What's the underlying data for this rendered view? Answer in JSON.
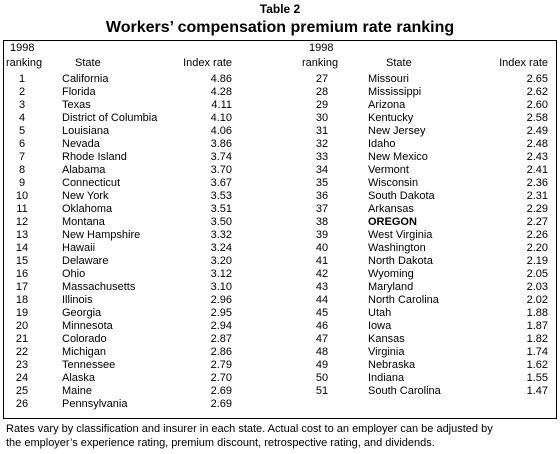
{
  "label": "Table 2",
  "title": "Workers’ compensation premium rate ranking",
  "tables": [
    {
      "header": {
        "year": "1998",
        "rank": "ranking",
        "state": "State",
        "rate": "Index rate"
      },
      "rows": [
        [
          "1",
          "California",
          "4.86"
        ],
        [
          "2",
          "Florida",
          "4.28"
        ],
        [
          "3",
          "Texas",
          "4.11"
        ],
        [
          "4",
          "District of Columbia",
          "4.10"
        ],
        [
          "5",
          "Louisiana",
          "4.06"
        ],
        [
          "6",
          "Nevada",
          "3.86"
        ],
        [
          "7",
          "Rhode Island",
          "3.74"
        ],
        [
          "8",
          "Alabama",
          "3.70"
        ],
        [
          "9",
          "Connecticut",
          "3.67"
        ],
        [
          "10",
          "New York",
          "3.53"
        ],
        [
          "11",
          "Oklahoma",
          "3.51"
        ],
        [
          "12",
          "Montana",
          "3.50"
        ],
        [
          "13",
          "New Hampshire",
          "3.32"
        ],
        [
          "14",
          "Hawaii",
          "3.24"
        ],
        [
          "15",
          "Delaware",
          "3.20"
        ],
        [
          "16",
          "Ohio",
          "3.12"
        ],
        [
          "17",
          "Massachusetts",
          "3.10"
        ],
        [
          "18",
          "Illinois",
          "2.96"
        ],
        [
          "19",
          "Georgia",
          "2.95"
        ],
        [
          "20",
          "Minnesota",
          "2.94"
        ],
        [
          "21",
          "Colorado",
          "2.87"
        ],
        [
          "22",
          "Michigan",
          "2.86"
        ],
        [
          "23",
          "Tennessee",
          "2.79"
        ],
        [
          "24",
          "Alaska",
          "2.70"
        ],
        [
          "25",
          "Maine",
          "2.69"
        ],
        [
          "26",
          "Pennsylvania",
          "2.69"
        ]
      ],
      "bold_rows": []
    },
    {
      "header": {
        "year": "1998",
        "rank": "ranking",
        "state": "State",
        "rate": "Index rate"
      },
      "rows": [
        [
          "27",
          "Missouri",
          "2.65"
        ],
        [
          "28",
          "Mississippi",
          "2.62"
        ],
        [
          "29",
          "Arizona",
          "2.60"
        ],
        [
          "30",
          "Kentucky",
          "2.58"
        ],
        [
          "31",
          "New Jersey",
          "2.49"
        ],
        [
          "32",
          "Idaho",
          "2.48"
        ],
        [
          "33",
          "New Mexico",
          "2.43"
        ],
        [
          "34",
          "Vermont",
          "2.41"
        ],
        [
          "35",
          "Wisconsin",
          "2.36"
        ],
        [
          "36",
          "South Dakota",
          "2.31"
        ],
        [
          "37",
          "Arkansas",
          "2.29"
        ],
        [
          "38",
          "OREGON",
          "2.27"
        ],
        [
          "39",
          "West Virginia",
          "2.26"
        ],
        [
          "40",
          "Washington",
          "2.20"
        ],
        [
          "41",
          "North Dakota",
          "2.19"
        ],
        [
          "42",
          "Wyoming",
          "2.05"
        ],
        [
          "43",
          "Maryland",
          "2.03"
        ],
        [
          "44",
          "North Carolina",
          "2.02"
        ],
        [
          "45",
          "Utah",
          "1.88"
        ],
        [
          "46",
          "Iowa",
          "1.87"
        ],
        [
          "47",
          "Kansas",
          "1.82"
        ],
        [
          "48",
          "Virginia",
          "1.74"
        ],
        [
          "49",
          "Nebraska",
          "1.62"
        ],
        [
          "50",
          "Indiana",
          "1.55"
        ],
        [
          "51",
          "South Carolina",
          "1.47"
        ]
      ],
      "bold_rows": [
        11
      ]
    }
  ],
  "footnote": [
    "Rates vary by classification and insurer in each state.  Actual cost to an employer can be adjusted by",
    "the employer’s experience rating, premium discount, retrospective rating, and dividends."
  ]
}
